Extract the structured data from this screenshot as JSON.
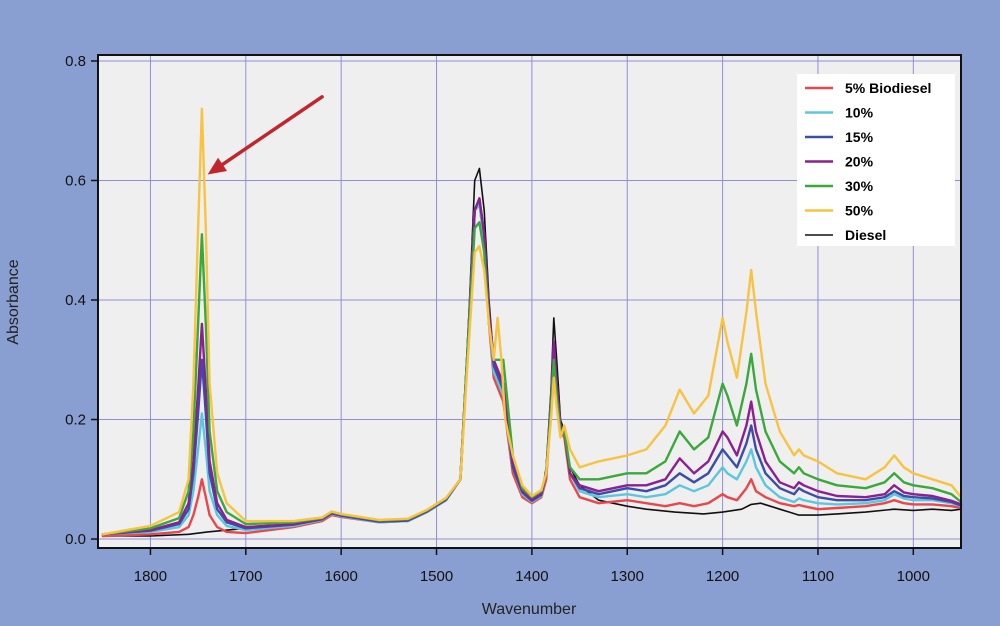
{
  "chart_data": {
    "type": "line",
    "xlabel": "Wavenumber",
    "ylabel": "Absorbance",
    "xlim": [
      1855,
      950
    ],
    "ylim": [
      -0.015,
      0.81
    ],
    "x_reversed": true,
    "grid": true,
    "legend_position": "top-right",
    "xticks": [
      1800,
      1700,
      1600,
      1500,
      1400,
      1300,
      1200,
      1100,
      1000
    ],
    "xtick_labels": [
      "1800",
      "1700",
      "1600",
      "1500",
      "1400",
      "1300",
      "1200",
      "1100",
      "1000"
    ],
    "yticks": [
      0.0,
      0.2,
      0.4,
      0.6,
      0.8
    ],
    "ytick_labels": [
      "0.0",
      "0.2",
      "0.4",
      "0.6",
      "0.8"
    ],
    "colors": {
      "background": "#8a9fd1",
      "plot_area": "#efefef",
      "grid": "#8f8fd8",
      "arrow": "#c0262b"
    },
    "annotations": [
      {
        "type": "arrow",
        "from": [
          1620,
          0.74
        ],
        "to": [
          1740,
          0.61
        ]
      }
    ],
    "series": [
      {
        "name": "Diesel",
        "color": "#111111",
        "x": [
          1850,
          1800,
          1760,
          1740,
          1700,
          1650,
          1620,
          1610,
          1600,
          1560,
          1530,
          1510,
          1490,
          1475,
          1468,
          1460,
          1455,
          1450,
          1445,
          1440,
          1430,
          1420,
          1410,
          1400,
          1390,
          1385,
          1380,
          1377,
          1374,
          1370,
          1366,
          1360,
          1350,
          1330,
          1300,
          1280,
          1250,
          1220,
          1200,
          1180,
          1170,
          1160,
          1150,
          1140,
          1130,
          1120,
          1100,
          1080,
          1050,
          1020,
          1000,
          980,
          960,
          950
        ],
        "y": [
          0.005,
          0.005,
          0.008,
          0.012,
          0.018,
          0.025,
          0.032,
          0.042,
          0.038,
          0.028,
          0.03,
          0.045,
          0.065,
          0.1,
          0.3,
          0.6,
          0.62,
          0.55,
          0.4,
          0.3,
          0.25,
          0.12,
          0.08,
          0.06,
          0.07,
          0.12,
          0.25,
          0.37,
          0.3,
          0.2,
          0.18,
          0.12,
          0.09,
          0.065,
          0.055,
          0.05,
          0.045,
          0.042,
          0.045,
          0.05,
          0.058,
          0.06,
          0.055,
          0.05,
          0.045,
          0.04,
          0.04,
          0.042,
          0.045,
          0.05,
          0.048,
          0.05,
          0.048,
          0.05
        ]
      },
      {
        "name": "5% Biodiesel",
        "color": "#e8474b",
        "x": [
          1850,
          1800,
          1770,
          1760,
          1755,
          1750,
          1746,
          1742,
          1738,
          1730,
          1720,
          1700,
          1650,
          1620,
          1610,
          1600,
          1560,
          1530,
          1510,
          1490,
          1475,
          1468,
          1460,
          1455,
          1450,
          1445,
          1440,
          1430,
          1420,
          1410,
          1400,
          1390,
          1385,
          1380,
          1377,
          1374,
          1370,
          1366,
          1360,
          1350,
          1330,
          1300,
          1280,
          1260,
          1245,
          1230,
          1215,
          1200,
          1195,
          1185,
          1175,
          1170,
          1165,
          1155,
          1140,
          1125,
          1120,
          1115,
          1100,
          1080,
          1050,
          1030,
          1020,
          1010,
          1000,
          980,
          960,
          950
        ],
        "y": [
          0.005,
          0.008,
          0.012,
          0.02,
          0.04,
          0.07,
          0.1,
          0.07,
          0.04,
          0.02,
          0.012,
          0.01,
          0.02,
          0.03,
          0.04,
          0.037,
          0.028,
          0.03,
          0.045,
          0.065,
          0.1,
          0.3,
          0.55,
          0.56,
          0.5,
          0.36,
          0.27,
          0.23,
          0.11,
          0.07,
          0.06,
          0.07,
          0.1,
          0.22,
          0.3,
          0.24,
          0.18,
          0.17,
          0.1,
          0.07,
          0.06,
          0.065,
          0.06,
          0.055,
          0.06,
          0.055,
          0.06,
          0.075,
          0.07,
          0.065,
          0.085,
          0.1,
          0.08,
          0.07,
          0.06,
          0.055,
          0.057,
          0.055,
          0.05,
          0.052,
          0.055,
          0.06,
          0.065,
          0.06,
          0.058,
          0.058,
          0.055,
          0.052
        ]
      },
      {
        "name": "10%",
        "color": "#5ec6dc",
        "x": [
          1850,
          1800,
          1770,
          1760,
          1755,
          1750,
          1746,
          1742,
          1738,
          1730,
          1720,
          1700,
          1650,
          1620,
          1610,
          1600,
          1560,
          1530,
          1510,
          1490,
          1475,
          1468,
          1460,
          1455,
          1450,
          1445,
          1440,
          1430,
          1420,
          1410,
          1400,
          1390,
          1385,
          1380,
          1377,
          1374,
          1370,
          1366,
          1360,
          1350,
          1330,
          1300,
          1280,
          1260,
          1245,
          1230,
          1215,
          1200,
          1195,
          1185,
          1175,
          1170,
          1165,
          1155,
          1140,
          1125,
          1120,
          1115,
          1100,
          1080,
          1050,
          1030,
          1020,
          1010,
          1000,
          980,
          960,
          950
        ],
        "y": [
          0.008,
          0.012,
          0.02,
          0.04,
          0.08,
          0.15,
          0.21,
          0.15,
          0.08,
          0.04,
          0.022,
          0.015,
          0.022,
          0.032,
          0.042,
          0.038,
          0.028,
          0.03,
          0.045,
          0.065,
          0.1,
          0.3,
          0.55,
          0.56,
          0.5,
          0.37,
          0.28,
          0.24,
          0.12,
          0.075,
          0.062,
          0.072,
          0.11,
          0.23,
          0.32,
          0.25,
          0.19,
          0.18,
          0.11,
          0.08,
          0.07,
          0.075,
          0.07,
          0.075,
          0.09,
          0.08,
          0.09,
          0.12,
          0.11,
          0.1,
          0.13,
          0.15,
          0.12,
          0.09,
          0.07,
          0.062,
          0.068,
          0.065,
          0.06,
          0.058,
          0.06,
          0.065,
          0.075,
          0.068,
          0.065,
          0.065,
          0.06,
          0.055
        ]
      },
      {
        "name": "15%",
        "color": "#3a4ea8",
        "x": [
          1850,
          1800,
          1770,
          1760,
          1755,
          1750,
          1746,
          1742,
          1738,
          1730,
          1720,
          1700,
          1650,
          1620,
          1610,
          1600,
          1560,
          1530,
          1510,
          1490,
          1475,
          1468,
          1460,
          1455,
          1450,
          1445,
          1440,
          1430,
          1420,
          1410,
          1400,
          1390,
          1385,
          1380,
          1377,
          1374,
          1370,
          1366,
          1360,
          1350,
          1330,
          1300,
          1280,
          1260,
          1245,
          1230,
          1215,
          1200,
          1195,
          1185,
          1175,
          1170,
          1165,
          1155,
          1140,
          1125,
          1120,
          1115,
          1100,
          1080,
          1050,
          1030,
          1020,
          1010,
          1000,
          980,
          960,
          950
        ],
        "y": [
          0.008,
          0.014,
          0.025,
          0.05,
          0.11,
          0.21,
          0.3,
          0.21,
          0.11,
          0.05,
          0.028,
          0.018,
          0.024,
          0.033,
          0.043,
          0.039,
          0.029,
          0.031,
          0.046,
          0.066,
          0.1,
          0.3,
          0.55,
          0.57,
          0.51,
          0.38,
          0.29,
          0.25,
          0.12,
          0.078,
          0.064,
          0.074,
          0.11,
          0.23,
          0.33,
          0.26,
          0.19,
          0.18,
          0.11,
          0.085,
          0.075,
          0.085,
          0.08,
          0.09,
          0.11,
          0.095,
          0.11,
          0.15,
          0.14,
          0.12,
          0.16,
          0.19,
          0.15,
          0.11,
          0.085,
          0.075,
          0.085,
          0.08,
          0.07,
          0.065,
          0.065,
          0.07,
          0.08,
          0.072,
          0.07,
          0.068,
          0.062,
          0.056
        ]
      },
      {
        "name": "20%",
        "color": "#8a2190",
        "x": [
          1850,
          1800,
          1770,
          1760,
          1755,
          1750,
          1746,
          1742,
          1738,
          1730,
          1720,
          1700,
          1650,
          1620,
          1610,
          1600,
          1560,
          1530,
          1510,
          1490,
          1475,
          1468,
          1460,
          1455,
          1450,
          1445,
          1440,
          1430,
          1420,
          1410,
          1400,
          1390,
          1385,
          1380,
          1377,
          1374,
          1370,
          1366,
          1360,
          1350,
          1330,
          1300,
          1280,
          1260,
          1245,
          1230,
          1215,
          1200,
          1195,
          1185,
          1175,
          1170,
          1165,
          1155,
          1140,
          1125,
          1120,
          1115,
          1100,
          1080,
          1050,
          1030,
          1020,
          1010,
          1000,
          980,
          960,
          950
        ],
        "y": [
          0.008,
          0.015,
          0.028,
          0.06,
          0.13,
          0.25,
          0.36,
          0.25,
          0.13,
          0.06,
          0.032,
          0.02,
          0.025,
          0.034,
          0.044,
          0.04,
          0.03,
          0.032,
          0.047,
          0.067,
          0.1,
          0.3,
          0.55,
          0.57,
          0.51,
          0.38,
          0.3,
          0.26,
          0.13,
          0.08,
          0.066,
          0.076,
          0.11,
          0.23,
          0.33,
          0.26,
          0.19,
          0.18,
          0.11,
          0.09,
          0.08,
          0.09,
          0.09,
          0.1,
          0.135,
          0.11,
          0.13,
          0.18,
          0.17,
          0.14,
          0.19,
          0.23,
          0.18,
          0.13,
          0.095,
          0.085,
          0.095,
          0.09,
          0.08,
          0.072,
          0.07,
          0.075,
          0.09,
          0.078,
          0.075,
          0.072,
          0.064,
          0.058
        ]
      },
      {
        "name": "30%",
        "color": "#3aa83a",
        "x": [
          1850,
          1800,
          1770,
          1760,
          1755,
          1750,
          1746,
          1742,
          1738,
          1730,
          1720,
          1700,
          1650,
          1620,
          1610,
          1600,
          1560,
          1530,
          1510,
          1490,
          1475,
          1468,
          1460,
          1455,
          1450,
          1445,
          1440,
          1430,
          1420,
          1410,
          1400,
          1390,
          1385,
          1380,
          1377,
          1374,
          1370,
          1366,
          1360,
          1350,
          1330,
          1300,
          1280,
          1260,
          1245,
          1230,
          1215,
          1200,
          1195,
          1185,
          1175,
          1170,
          1165,
          1155,
          1140,
          1125,
          1120,
          1115,
          1100,
          1080,
          1050,
          1030,
          1020,
          1010,
          1000,
          980,
          960,
          950
        ],
        "y": [
          0.008,
          0.018,
          0.035,
          0.08,
          0.18,
          0.36,
          0.51,
          0.36,
          0.18,
          0.08,
          0.045,
          0.025,
          0.028,
          0.035,
          0.045,
          0.041,
          0.031,
          0.033,
          0.048,
          0.068,
          0.1,
          0.3,
          0.52,
          0.53,
          0.48,
          0.36,
          0.3,
          0.3,
          0.14,
          0.085,
          0.07,
          0.08,
          0.11,
          0.22,
          0.3,
          0.24,
          0.18,
          0.18,
          0.12,
          0.1,
          0.1,
          0.11,
          0.11,
          0.13,
          0.18,
          0.15,
          0.17,
          0.26,
          0.24,
          0.19,
          0.26,
          0.31,
          0.25,
          0.18,
          0.13,
          0.11,
          0.12,
          0.11,
          0.1,
          0.09,
          0.085,
          0.095,
          0.11,
          0.095,
          0.09,
          0.085,
          0.075,
          0.062
        ]
      },
      {
        "name": "50%",
        "color": "#f7c341",
        "x": [
          1850,
          1800,
          1770,
          1760,
          1755,
          1750,
          1746,
          1742,
          1738,
          1730,
          1720,
          1700,
          1650,
          1620,
          1610,
          1600,
          1560,
          1530,
          1510,
          1490,
          1475,
          1468,
          1460,
          1455,
          1450,
          1445,
          1440,
          1436,
          1432,
          1428,
          1420,
          1410,
          1400,
          1390,
          1385,
          1380,
          1377,
          1374,
          1370,
          1366,
          1360,
          1350,
          1330,
          1300,
          1280,
          1260,
          1245,
          1230,
          1215,
          1200,
          1195,
          1185,
          1175,
          1170,
          1165,
          1155,
          1140,
          1125,
          1120,
          1115,
          1100,
          1080,
          1050,
          1030,
          1020,
          1010,
          1000,
          980,
          960,
          950
        ],
        "y": [
          0.008,
          0.022,
          0.045,
          0.1,
          0.26,
          0.52,
          0.72,
          0.52,
          0.26,
          0.11,
          0.06,
          0.03,
          0.03,
          0.036,
          0.046,
          0.042,
          0.032,
          0.034,
          0.049,
          0.069,
          0.1,
          0.28,
          0.48,
          0.49,
          0.45,
          0.36,
          0.3,
          0.37,
          0.3,
          0.2,
          0.14,
          0.09,
          0.072,
          0.082,
          0.11,
          0.2,
          0.27,
          0.22,
          0.17,
          0.19,
          0.15,
          0.12,
          0.13,
          0.14,
          0.15,
          0.19,
          0.25,
          0.21,
          0.24,
          0.37,
          0.33,
          0.27,
          0.38,
          0.45,
          0.38,
          0.26,
          0.18,
          0.14,
          0.15,
          0.14,
          0.13,
          0.11,
          0.1,
          0.12,
          0.14,
          0.12,
          0.11,
          0.1,
          0.09,
          0.07
        ]
      }
    ]
  }
}
